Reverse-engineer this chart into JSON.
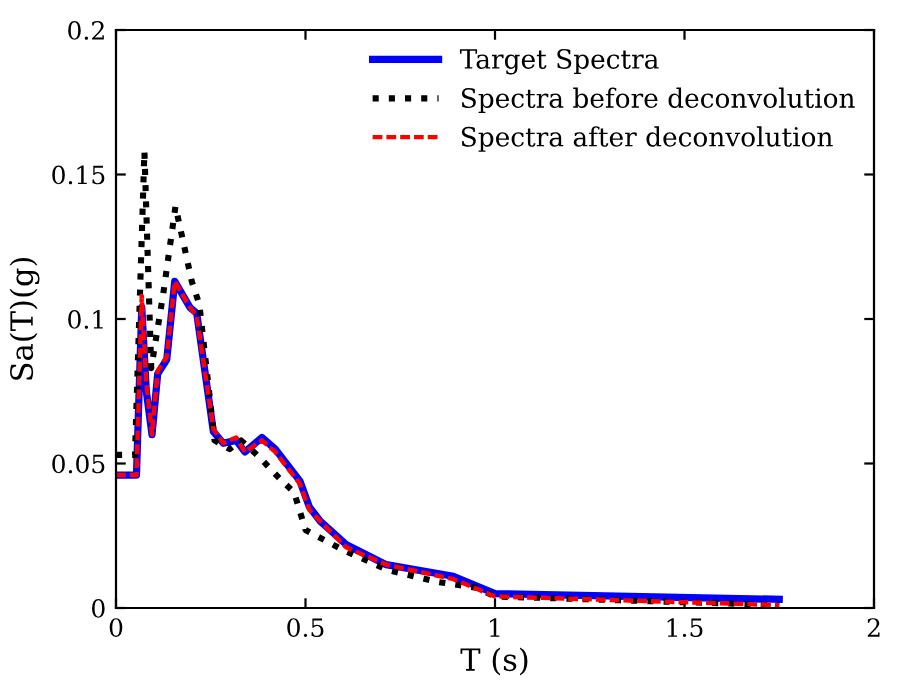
{
  "chart_data": {
    "type": "line",
    "xlabel": "T (s)",
    "ylabel": "Sa(T)(g)",
    "xlim": [
      0,
      2
    ],
    "ylim": [
      0,
      0.2
    ],
    "xticks": [
      0,
      0.5,
      1,
      1.5,
      2
    ],
    "yticks": [
      0,
      0.05,
      0.1,
      0.15,
      0.2
    ],
    "grid": false,
    "legend": "top right",
    "series": [
      {
        "name": "Target Spectra",
        "color": "#0000ff",
        "line_style": "solid",
        "x": [
          0,
          0.054,
          0.068,
          0.08,
          0.095,
          0.11,
          0.134,
          0.155,
          0.195,
          0.213,
          0.257,
          0.283,
          0.317,
          0.34,
          0.385,
          0.42,
          0.485,
          0.51,
          0.539,
          0.607,
          0.713,
          0.89,
          1.0,
          1.75
        ],
        "values": [
          0.046,
          0.046,
          0.104,
          0.075,
          0.06,
          0.081,
          0.086,
          0.113,
          0.104,
          0.102,
          0.061,
          0.057,
          0.058,
          0.054,
          0.059,
          0.055,
          0.044,
          0.035,
          0.03,
          0.022,
          0.015,
          0.011,
          0.005,
          0.003
        ]
      },
      {
        "name": "Spectra before deconvolution",
        "color": "#000000",
        "line_style": "dotted",
        "x": [
          0,
          0.05,
          0.075,
          0.093,
          0.125,
          0.157,
          0.2,
          0.22,
          0.26,
          0.3,
          0.33,
          0.38,
          0.43,
          0.47,
          0.5,
          0.6,
          0.72,
          0.85,
          0.95,
          1.0,
          1.75
        ],
        "values": [
          0.053,
          0.053,
          0.158,
          0.083,
          0.109,
          0.139,
          0.113,
          0.105,
          0.058,
          0.055,
          0.058,
          0.052,
          0.045,
          0.04,
          0.027,
          0.02,
          0.013,
          0.009,
          0.007,
          0.004,
          0.001
        ]
      },
      {
        "name": "Spectra after deconvolution",
        "color": "#ff0000",
        "line_style": "dashed",
        "x": [
          0,
          0.054,
          0.068,
          0.08,
          0.095,
          0.11,
          0.134,
          0.155,
          0.195,
          0.213,
          0.257,
          0.283,
          0.317,
          0.34,
          0.385,
          0.42,
          0.485,
          0.51,
          0.539,
          0.607,
          0.713,
          0.89,
          1.0,
          1.75
        ],
        "values": [
          0.046,
          0.046,
          0.108,
          0.078,
          0.06,
          0.082,
          0.087,
          0.113,
          0.104,
          0.101,
          0.062,
          0.057,
          0.059,
          0.054,
          0.058,
          0.054,
          0.043,
          0.034,
          0.03,
          0.021,
          0.015,
          0.01,
          0.004,
          0.001
        ]
      }
    ]
  }
}
